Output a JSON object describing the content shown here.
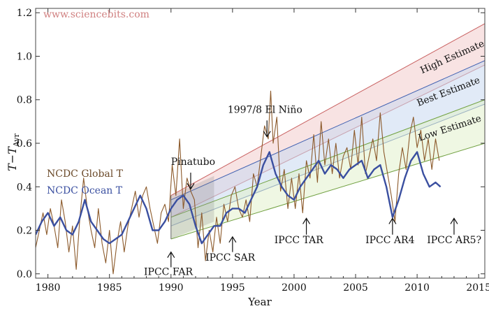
{
  "watermark": "www.sciencebits.com",
  "chart_data": {
    "type": "line",
    "xlabel": "Year",
    "ylabel_main": "T",
    "ylabel_minus": "−",
    "ylabel_t": "T",
    "ylabel_sub": "Avr",
    "xlim": [
      1979,
      2015.5
    ],
    "ylim": [
      -0.02,
      1.22
    ],
    "xticks": [
      1980,
      1985,
      1990,
      1995,
      2000,
      2005,
      2010,
      2015
    ],
    "yticks": [
      0.0,
      0.2,
      0.4,
      0.6,
      0.8,
      1.0,
      1.2
    ],
    "ytick_labels": [
      "0.0",
      "0.2",
      "0.4",
      "0.6",
      "0.8",
      "1.0",
      "1.2"
    ],
    "series": [
      {
        "name": "NCDC Global T",
        "color": "#8c5a2b",
        "x": [
          1979.0,
          1979.3,
          1979.6,
          1979.9,
          1980.2,
          1980.5,
          1980.8,
          1981.1,
          1981.4,
          1981.7,
          1982.0,
          1982.3,
          1982.6,
          1982.9,
          1983.2,
          1983.5,
          1983.8,
          1984.1,
          1984.4,
          1984.7,
          1985.0,
          1985.3,
          1985.6,
          1985.9,
          1986.2,
          1986.5,
          1986.8,
          1987.1,
          1987.4,
          1987.7,
          1988.0,
          1988.3,
          1988.6,
          1988.9,
          1989.2,
          1989.5,
          1989.8,
          1990.1,
          1990.4,
          1990.7,
          1991.0,
          1991.3,
          1991.6,
          1991.9,
          1992.2,
          1992.5,
          1992.8,
          1993.1,
          1993.4,
          1993.7,
          1994.0,
          1994.3,
          1994.6,
          1994.9,
          1995.2,
          1995.5,
          1995.8,
          1996.1,
          1996.4,
          1996.7,
          1997.0,
          1997.3,
          1997.6,
          1997.9,
          1998.1,
          1998.3,
          1998.6,
          1998.9,
          1999.2,
          1999.5,
          1999.8,
          2000.1,
          2000.4,
          2000.7,
          2001.0,
          2001.3,
          2001.6,
          2001.9,
          2002.2,
          2002.5,
          2002.8,
          2003.1,
          2003.4,
          2003.7,
          2004.0,
          2004.3,
          2004.6,
          2004.9,
          2005.2,
          2005.5,
          2005.8,
          2006.1,
          2006.4,
          2006.7,
          2007.0,
          2007.3,
          2007.6,
          2007.9,
          2008.2,
          2008.5,
          2008.8,
          2009.1,
          2009.4,
          2009.7,
          2010.0,
          2010.3,
          2010.6,
          2010.9,
          2011.2,
          2011.5,
          2011.8
        ],
        "y": [
          0.12,
          0.2,
          0.28,
          0.18,
          0.3,
          0.22,
          0.12,
          0.34,
          0.24,
          0.1,
          0.22,
          0.02,
          0.26,
          0.44,
          0.3,
          0.2,
          0.12,
          0.3,
          0.14,
          0.05,
          0.2,
          0.0,
          0.14,
          0.24,
          0.1,
          0.22,
          0.3,
          0.38,
          0.26,
          0.36,
          0.4,
          0.3,
          0.22,
          0.14,
          0.28,
          0.32,
          0.24,
          0.5,
          0.36,
          0.62,
          0.3,
          0.44,
          0.38,
          0.34,
          0.12,
          0.28,
          0.06,
          0.2,
          0.1,
          0.26,
          0.14,
          0.32,
          0.24,
          0.36,
          0.4,
          0.3,
          0.26,
          0.34,
          0.24,
          0.46,
          0.4,
          0.54,
          0.68,
          0.62,
          0.84,
          0.6,
          0.72,
          0.38,
          0.48,
          0.3,
          0.44,
          0.3,
          0.46,
          0.28,
          0.52,
          0.44,
          0.64,
          0.42,
          0.7,
          0.5,
          0.62,
          0.46,
          0.6,
          0.44,
          0.54,
          0.58,
          0.48,
          0.66,
          0.5,
          0.72,
          0.46,
          0.54,
          0.62,
          0.52,
          0.74,
          0.56,
          0.46,
          0.36,
          0.24,
          0.46,
          0.58,
          0.48,
          0.64,
          0.72,
          0.58,
          0.66,
          0.52,
          0.62,
          0.48,
          0.62,
          0.52
        ]
      },
      {
        "name": "NCDC Ocean T",
        "color": "#3a4fa0",
        "x": [
          1979.0,
          1979.5,
          1980.0,
          1980.5,
          1981.0,
          1981.5,
          1982.0,
          1982.5,
          1983.0,
          1983.5,
          1984.0,
          1984.5,
          1985.0,
          1985.5,
          1986.0,
          1986.5,
          1987.0,
          1987.5,
          1988.0,
          1988.5,
          1989.0,
          1989.5,
          1990.0,
          1990.5,
          1991.0,
          1991.5,
          1992.0,
          1992.5,
          1993.0,
          1993.5,
          1994.0,
          1994.5,
          1995.0,
          1995.5,
          1996.0,
          1996.5,
          1997.0,
          1997.5,
          1998.0,
          1998.5,
          1999.0,
          1999.5,
          2000.0,
          2000.5,
          2001.0,
          2001.5,
          2002.0,
          2002.5,
          2003.0,
          2003.5,
          2004.0,
          2004.5,
          2005.0,
          2005.5,
          2006.0,
          2006.5,
          2007.0,
          2007.5,
          2008.0,
          2008.5,
          2009.0,
          2009.5,
          2010.0,
          2010.5,
          2011.0,
          2011.5,
          2011.9
        ],
        "y": [
          0.18,
          0.24,
          0.28,
          0.22,
          0.26,
          0.2,
          0.18,
          0.24,
          0.34,
          0.24,
          0.2,
          0.16,
          0.14,
          0.16,
          0.18,
          0.24,
          0.3,
          0.36,
          0.3,
          0.2,
          0.2,
          0.24,
          0.3,
          0.34,
          0.36,
          0.32,
          0.22,
          0.14,
          0.18,
          0.22,
          0.22,
          0.28,
          0.3,
          0.3,
          0.28,
          0.34,
          0.4,
          0.5,
          0.56,
          0.46,
          0.4,
          0.36,
          0.34,
          0.4,
          0.44,
          0.48,
          0.52,
          0.46,
          0.5,
          0.48,
          0.44,
          0.48,
          0.5,
          0.52,
          0.44,
          0.48,
          0.5,
          0.4,
          0.26,
          0.34,
          0.44,
          0.52,
          0.56,
          0.46,
          0.4,
          0.42,
          0.4
        ]
      }
    ],
    "legend": [
      {
        "label": "NCDC Global T",
        "color": "#6b4a2a"
      },
      {
        "label": "NCDC Ocean T",
        "color": "#3a4fa0"
      }
    ],
    "fans": [
      {
        "name": "High Estimate",
        "color": "#c86060",
        "fill": "#f2cccc",
        "start_year": 1990,
        "end_year": 2015.5,
        "start_low": 0.26,
        "start_high": 0.36,
        "end_low": 0.96,
        "end_high": 1.15
      },
      {
        "name": "Best Estimate",
        "color": "#4060b0",
        "fill": "#c8d8f0",
        "start_year": 1990,
        "end_year": 2015.5,
        "start_low": 0.22,
        "start_high": 0.34,
        "end_low": 0.78,
        "end_high": 0.98
      },
      {
        "name": "Low Estimate",
        "color": "#70a040",
        "fill": "#e2f0cc",
        "start_year": 1990,
        "end_year": 2015.5,
        "start_low": 0.16,
        "start_high": 0.26,
        "end_low": 0.6,
        "end_high": 0.8
      }
    ],
    "fan_labels": [
      {
        "text": "High Estimate",
        "x": 2010.4,
        "y": 0.92,
        "angle": -24
      },
      {
        "text": "Best Estimate",
        "x": 2010.1,
        "y": 0.77,
        "angle": -21
      },
      {
        "text": "Low Estimate",
        "x": 2010.2,
        "y": 0.61,
        "angle": -18
      }
    ],
    "annotations": [
      {
        "text": "Pinatubo",
        "tx": 1990.0,
        "ty": 0.5,
        "ax": 1991.6,
        "ay_from": 0.465,
        "ay_to": 0.39
      },
      {
        "text": "1997/8 El Niño",
        "tx": 1994.6,
        "ty": 0.74,
        "ax": 1997.8,
        "ay_from": 0.705,
        "ay_to": 0.63
      },
      {
        "text": "IPCC FAR",
        "tx": 1987.8,
        "ty": -0.005,
        "ax": 1990.0,
        "ay_from": 0.03,
        "ay_to": 0.1
      },
      {
        "text": "IPCC SAR",
        "tx": 1992.8,
        "ty": 0.06,
        "ax": 1995.0,
        "ay_from": 0.1,
        "ay_to": 0.17
      },
      {
        "text": "IPCC TAR",
        "tx": 1998.4,
        "ty": 0.14,
        "ax": 2001.0,
        "ay_from": 0.18,
        "ay_to": 0.255
      },
      {
        "text": "IPCC AR4",
        "tx": 2005.8,
        "ty": 0.14,
        "ax": 2008.0,
        "ay_from": 0.18,
        "ay_to": 0.255
      },
      {
        "text": "IPCC AR5?",
        "tx": 2010.8,
        "ty": 0.14,
        "ax": 2013.0,
        "ay_from": 0.18,
        "ay_to": 0.255
      }
    ]
  }
}
